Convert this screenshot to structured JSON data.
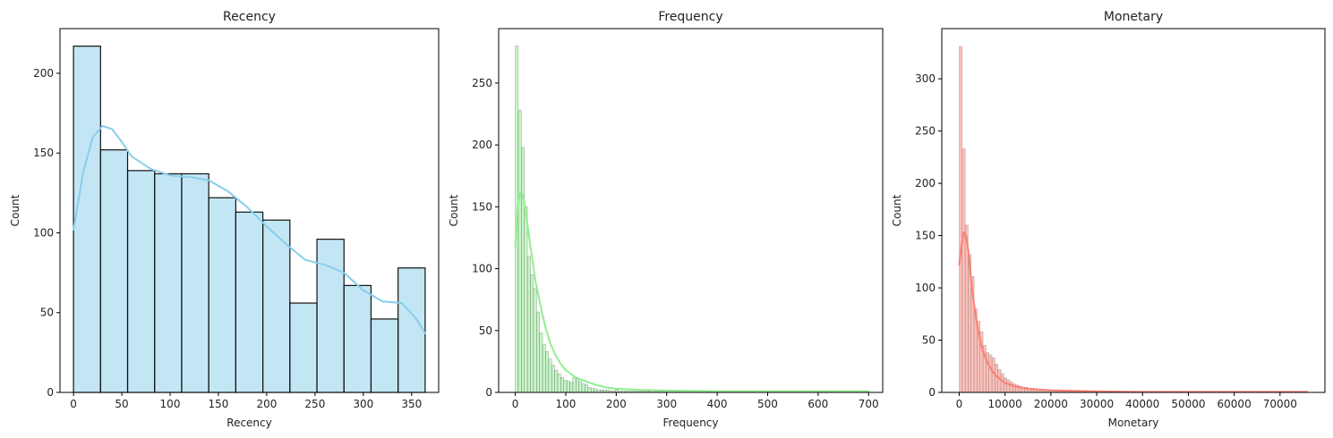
{
  "chart_data": [
    {
      "type": "bar",
      "title": "Recency",
      "xlabel": "Recency",
      "ylabel": "Count",
      "color": "#87CEEB",
      "edge_color": "#111111",
      "kde": true,
      "xlim": [
        -14,
        378
      ],
      "ylim": [
        0,
        228
      ],
      "xticks": [
        0,
        50,
        100,
        150,
        200,
        250,
        300,
        350
      ],
      "yticks": [
        0,
        50,
        100,
        150,
        200
      ],
      "bin_edges": [
        0,
        28,
        56,
        84,
        112,
        140,
        168,
        196,
        224,
        252,
        280,
        308,
        336,
        364
      ],
      "values": [
        217,
        152,
        139,
        137,
        137,
        122,
        113,
        108,
        56,
        96,
        67,
        46,
        78
      ],
      "kde_curve": {
        "x": [
          0,
          10,
          20,
          30,
          40,
          50,
          60,
          80,
          100,
          120,
          140,
          160,
          180,
          200,
          220,
          240,
          260,
          280,
          300,
          320,
          340,
          355,
          364
        ],
        "y": [
          102,
          138,
          160,
          167,
          165,
          157,
          148,
          140,
          136,
          135,
          133,
          126,
          116,
          104,
          93,
          83,
          80,
          75,
          64,
          57,
          56,
          46,
          37
        ]
      }
    },
    {
      "type": "bar",
      "title": "Frequency",
      "xlabel": "Frequency",
      "ylabel": "Count",
      "color": "#90EE90",
      "edge_color": "#555555",
      "kde": true,
      "xlim": [
        -33,
        728
      ],
      "ylim": [
        0,
        294
      ],
      "xticks": [
        0,
        100,
        200,
        300,
        400,
        500,
        600,
        700
      ],
      "yticks": [
        0,
        50,
        100,
        150,
        200,
        250
      ],
      "bin_width": 6,
      "values": [
        280,
        228,
        198,
        150,
        110,
        95,
        84,
        65,
        48,
        39,
        33,
        27,
        22,
        18,
        15,
        12,
        10,
        9,
        8,
        12,
        11,
        9,
        7,
        6,
        4,
        3,
        3,
        2,
        2,
        2,
        2,
        1,
        1,
        2,
        1,
        1,
        1,
        1,
        2,
        1,
        1,
        1,
        1,
        1,
        1,
        2,
        1,
        1,
        1,
        1,
        1,
        1,
        1,
        1,
        1,
        1,
        1,
        1,
        1,
        1,
        1,
        1,
        1,
        1,
        1,
        1,
        1,
        1,
        1,
        1,
        1,
        1,
        1,
        1,
        1,
        1,
        1,
        1,
        1,
        1,
        1,
        1,
        1,
        1,
        1,
        1,
        1,
        1,
        1,
        1,
        1,
        1,
        1,
        1,
        1,
        1,
        1,
        1,
        1,
        1,
        1,
        1,
        1,
        1,
        1,
        1,
        1,
        1,
        1,
        1,
        1,
        1,
        1,
        1,
        1,
        1
      ],
      "kde_curve": {
        "x": [
          0,
          5,
          10,
          15,
          20,
          30,
          40,
          50,
          60,
          70,
          80,
          90,
          100,
          120,
          140,
          160,
          180,
          200,
          250,
          300,
          400,
          500,
          600,
          700
        ],
        "y": [
          118,
          150,
          162,
          160,
          148,
          118,
          90,
          70,
          52,
          39,
          30,
          23,
          18,
          12,
          9,
          6,
          4,
          3,
          2,
          1.5,
          1,
          1,
          1,
          1
        ]
      }
    },
    {
      "type": "bar",
      "title": "Monetary",
      "xlabel": "Monetary",
      "ylabel": "Count",
      "color": "#FA8072",
      "edge_color": "#777777",
      "kde": true,
      "xlim": [
        -3800,
        79800
      ],
      "ylim": [
        0,
        348
      ],
      "xticks": [
        0,
        10000,
        20000,
        30000,
        40000,
        50000,
        60000,
        70000
      ],
      "yticks": [
        0,
        50,
        100,
        150,
        200,
        250,
        300
      ],
      "bin_width": 650,
      "values": [
        331,
        233,
        160,
        132,
        111,
        80,
        68,
        58,
        45,
        38,
        36,
        33,
        27,
        22,
        18,
        14,
        12,
        10,
        8,
        7,
        6,
        5,
        5,
        4,
        4,
        3,
        3,
        2,
        2,
        2,
        2,
        2,
        2,
        1,
        1,
        1,
        1,
        1,
        1,
        2,
        1,
        1,
        1,
        1,
        1,
        1,
        1,
        1,
        1,
        1,
        1,
        1,
        1,
        1,
        1,
        1,
        1,
        1,
        1,
        1,
        1,
        1,
        1,
        1,
        1,
        1,
        1,
        1,
        1,
        1,
        1,
        1,
        1,
        1,
        1,
        1,
        1,
        1,
        1,
        1,
        1,
        1,
        1,
        1,
        1,
        1,
        1,
        1,
        1,
        1,
        1,
        1,
        1,
        1,
        1,
        1,
        1,
        1,
        1,
        1,
        1,
        1,
        1,
        1,
        1,
        1,
        1,
        1,
        1,
        1,
        1,
        1,
        1,
        1,
        1,
        1,
        1
      ],
      "kde_curve": {
        "x": [
          0,
          500,
          1000,
          1500,
          2000,
          2500,
          3000,
          4000,
          5000,
          6000,
          7000,
          8000,
          10000,
          12000,
          15000,
          20000,
          30000,
          40000,
          50000,
          60000,
          70000,
          76000
        ],
        "y": [
          122,
          140,
          153,
          150,
          135,
          112,
          92,
          62,
          42,
          30,
          22,
          16,
          9,
          6,
          3.5,
          2,
          1,
          0.5,
          0.5,
          0.5,
          0.5,
          0.5
        ]
      }
    }
  ]
}
